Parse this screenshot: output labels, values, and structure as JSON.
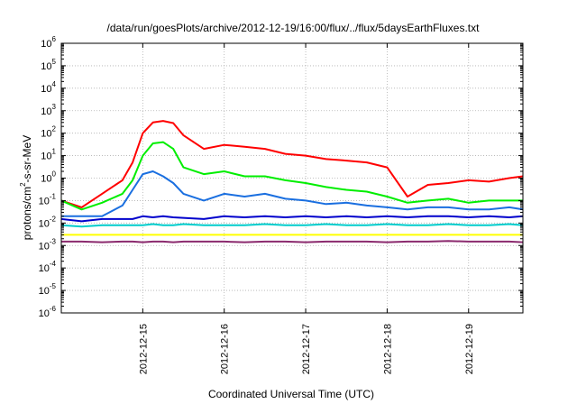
{
  "chart_data": {
    "type": "line",
    "title": "/data/run/goesPlots/archive/2012-12-19/16:00/flux/../flux/5daysEarthFluxes.txt",
    "xlabel": "Coordinated Universal Time (UTC)",
    "ylabel": {
      "base": "protons/cm",
      "exp": "2",
      "rest": "-s-sr-MeV"
    },
    "y_scale": "log",
    "ylim": [
      1e-06,
      1000000.0
    ],
    "y_ticks": [
      {
        "base": "10",
        "exp": "-6",
        "value": 1e-06
      },
      {
        "base": "10",
        "exp": "-5",
        "value": 1e-05
      },
      {
        "base": "10",
        "exp": "-4",
        "value": 0.0001
      },
      {
        "base": "10",
        "exp": "-3",
        "value": 0.001
      },
      {
        "base": "10",
        "exp": "-2",
        "value": 0.01
      },
      {
        "base": "10",
        "exp": "-1",
        "value": 0.1
      },
      {
        "base": "10",
        "exp": "0",
        "value": 1
      },
      {
        "base": "10",
        "exp": "1",
        "value": 10
      },
      {
        "base": "10",
        "exp": "2",
        "value": 100
      },
      {
        "base": "10",
        "exp": "3",
        "value": 1000
      },
      {
        "base": "10",
        "exp": "4",
        "value": 10000
      },
      {
        "base": "10",
        "exp": "5",
        "value": 100000
      },
      {
        "base": "10",
        "exp": "6",
        "value": 1000000
      }
    ],
    "xlim": [
      "2012-12-14T00:00",
      "2012-12-19T16:00"
    ],
    "x_ticks": [
      "2012-12-15",
      "2012-12-16",
      "2012-12-17",
      "2012-12-18",
      "2012-12-19"
    ],
    "grid": true,
    "x": [
      "2012-12-14T00:00",
      "2012-12-14T06:00",
      "2012-12-14T12:00",
      "2012-12-14T18:00",
      "2012-12-14T21:00",
      "2012-12-15T00:00",
      "2012-12-15T03:00",
      "2012-12-15T06:00",
      "2012-12-15T09:00",
      "2012-12-15T12:00",
      "2012-12-15T18:00",
      "2012-12-16T00:00",
      "2012-12-16T06:00",
      "2012-12-16T12:00",
      "2012-12-16T18:00",
      "2012-12-17T00:00",
      "2012-12-17T06:00",
      "2012-12-17T12:00",
      "2012-12-17T18:00",
      "2012-12-18T00:00",
      "2012-12-18T06:00",
      "2012-12-18T12:00",
      "2012-12-18T18:00",
      "2012-12-19T00:00",
      "2012-12-19T06:00",
      "2012-12-19T12:00",
      "2012-12-19T16:00"
    ],
    "series": [
      {
        "color": "#ff0000",
        "values": [
          0.1,
          0.05,
          0.2,
          0.8,
          5,
          100,
          300,
          350,
          280,
          80,
          20,
          30,
          25,
          20,
          12,
          10,
          7,
          6,
          5,
          3,
          0.15,
          0.5,
          0.6,
          0.8,
          0.7,
          1.0,
          1.2
        ]
      },
      {
        "color": "#00ee00",
        "values": [
          0.1,
          0.04,
          0.08,
          0.2,
          0.8,
          10,
          35,
          40,
          20,
          3,
          1.5,
          2,
          1.2,
          1.2,
          0.8,
          0.6,
          0.4,
          0.3,
          0.25,
          0.15,
          0.08,
          0.1,
          0.12,
          0.08,
          0.1,
          0.1,
          0.1
        ]
      },
      {
        "color": "#1a6fe0",
        "values": [
          0.02,
          0.02,
          0.02,
          0.06,
          0.3,
          1.5,
          2,
          1.2,
          0.6,
          0.2,
          0.1,
          0.2,
          0.15,
          0.2,
          0.12,
          0.1,
          0.07,
          0.08,
          0.06,
          0.05,
          0.04,
          0.05,
          0.05,
          0.04,
          0.04,
          0.05,
          0.04
        ]
      },
      {
        "color": "#0000cc",
        "values": [
          0.015,
          0.012,
          0.015,
          0.015,
          0.015,
          0.02,
          0.018,
          0.02,
          0.018,
          0.017,
          0.015,
          0.02,
          0.018,
          0.02,
          0.018,
          0.02,
          0.018,
          0.02,
          0.018,
          0.02,
          0.018,
          0.02,
          0.02,
          0.018,
          0.02,
          0.018,
          0.02
        ]
      },
      {
        "color": "#00cccc",
        "values": [
          0.008,
          0.007,
          0.008,
          0.008,
          0.008,
          0.008,
          0.009,
          0.008,
          0.008,
          0.009,
          0.008,
          0.008,
          0.008,
          0.009,
          0.008,
          0.008,
          0.009,
          0.008,
          0.008,
          0.009,
          0.008,
          0.008,
          0.009,
          0.008,
          0.008,
          0.009,
          0.008
        ]
      },
      {
        "color": "#ffff00",
        "values": [
          0.003,
          0.003,
          0.003,
          0.003,
          0.003,
          0.003,
          0.003,
          0.003,
          0.003,
          0.003,
          0.003,
          0.003,
          0.003,
          0.003,
          0.003,
          0.003,
          0.003,
          0.003,
          0.003,
          0.003,
          0.003,
          0.003,
          0.003,
          0.003,
          0.003,
          0.003,
          0.003
        ]
      },
      {
        "color": "#8b2a6e",
        "values": [
          0.0015,
          0.0015,
          0.0014,
          0.0015,
          0.0015,
          0.0014,
          0.0015,
          0.0015,
          0.0014,
          0.0015,
          0.0015,
          0.0015,
          0.0014,
          0.0015,
          0.0015,
          0.0014,
          0.0015,
          0.0015,
          0.0015,
          0.0014,
          0.0015,
          0.0015,
          0.0016,
          0.0015,
          0.0015,
          0.0015,
          0.0014
        ]
      }
    ]
  }
}
